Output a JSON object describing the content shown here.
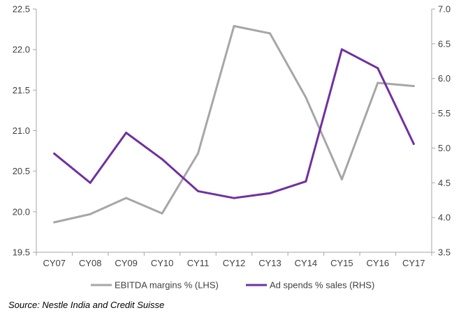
{
  "chart_data": {
    "type": "line",
    "categories": [
      "CY07",
      "CY08",
      "CY09",
      "CY10",
      "CY11",
      "CY12",
      "CY13",
      "CY14",
      "CY15",
      "CY16",
      "CY17"
    ],
    "series": [
      {
        "name": "EBITDA margins % (LHS)",
        "axis": "left",
        "color": "#a6a6a6",
        "values": [
          19.87,
          19.97,
          20.17,
          19.98,
          20.72,
          22.29,
          22.2,
          21.41,
          20.4,
          21.59,
          21.55
        ]
      },
      {
        "name": "Ad spends % sales (RHS)",
        "axis": "right",
        "color": "#7030a0",
        "values": [
          4.92,
          4.5,
          5.22,
          4.84,
          4.38,
          4.28,
          4.35,
          4.52,
          6.42,
          6.15,
          5.06
        ]
      }
    ],
    "y_left": {
      "ylim": [
        19.5,
        22.5
      ],
      "ticks": [
        "19.5",
        "20.0",
        "20.5",
        "21.0",
        "21.5",
        "22.0",
        "22.5"
      ]
    },
    "y_right": {
      "ylim": [
        3.5,
        7.0
      ],
      "ticks": [
        "3.5",
        "4.0",
        "4.5",
        "5.0",
        "5.5",
        "6.0",
        "6.5",
        "7.0"
      ]
    },
    "grid": false,
    "legend": "bottom-center"
  },
  "source": "Source: Nestle India and Credit Suisse"
}
